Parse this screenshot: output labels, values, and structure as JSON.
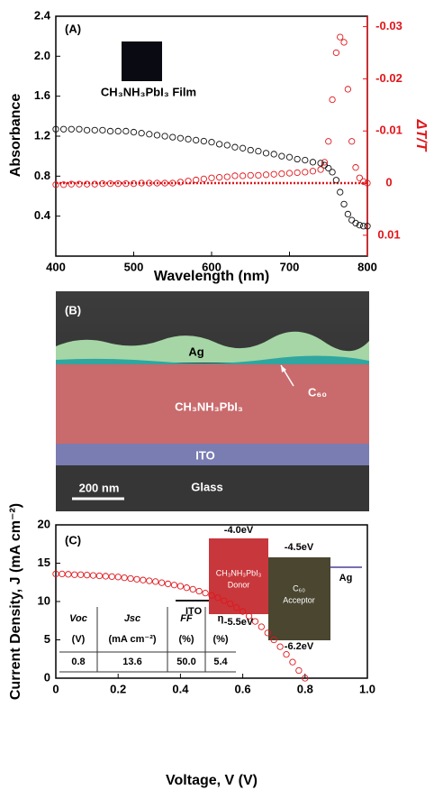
{
  "chart_data": [
    {
      "type": "scatter",
      "panel_label": "(A)",
      "y_label": "Absorbance",
      "x_label": "Wavelength (nm)",
      "y2_label": "ΔT/T",
      "inset_label": "CH₃NH₃PbI₃ Film",
      "xlim": [
        400,
        800
      ],
      "xticks": [
        400,
        500,
        600,
        700,
        800
      ],
      "ylim": [
        0,
        2.4
      ],
      "yticks": [
        0.4,
        0.8,
        1.2,
        1.6,
        {
          "value": 2,
          "label": "2.0"
        },
        2.4
      ],
      "y2lim": [
        0.014,
        -0.032
      ],
      "y2ticks": [
        -0.03,
        -0.02,
        -0.01,
        0,
        0.01
      ],
      "x": [
        400,
        410,
        420,
        430,
        440,
        450,
        460,
        470,
        480,
        490,
        500,
        510,
        520,
        530,
        540,
        550,
        560,
        570,
        580,
        590,
        600,
        610,
        620,
        630,
        640,
        650,
        660,
        670,
        680,
        690,
        700,
        710,
        720,
        730,
        740,
        745,
        750,
        755,
        760,
        765,
        770,
        775,
        780,
        785,
        790,
        795,
        800
      ],
      "series": [
        {
          "color": "#111111",
          "axis": "y",
          "values": [
            1.27,
            1.27,
            1.27,
            1.27,
            1.26,
            1.26,
            1.26,
            1.25,
            1.25,
            1.25,
            1.24,
            1.23,
            1.22,
            1.21,
            1.2,
            1.19,
            1.18,
            1.17,
            1.16,
            1.15,
            1.14,
            1.12,
            1.11,
            1.09,
            1.08,
            1.06,
            1.05,
            1.03,
            1.02,
            1.0,
            0.99,
            0.97,
            0.96,
            0.94,
            0.93,
            0.91,
            0.88,
            0.84,
            0.76,
            0.64,
            0.52,
            0.42,
            0.36,
            0.33,
            0.31,
            0.3,
            0.3
          ]
        },
        {
          "color": "#e0161b",
          "axis": "y2",
          "values": [
            0.0003,
            0.0003,
            0.0002,
            0.0002,
            0.0002,
            0.0002,
            0.0001,
            0.0001,
            0.0001,
            0.0001,
            0.0001,
            0.0,
            0.0,
            0.0,
            0.0,
            0.0,
            -0.0002,
            -0.0004,
            -0.0006,
            -0.0008,
            -0.001,
            -0.0011,
            -0.0012,
            -0.0014,
            -0.0014,
            -0.0015,
            -0.0015,
            -0.0016,
            -0.0017,
            -0.0018,
            -0.0019,
            -0.002,
            -0.0021,
            -0.0023,
            -0.0026,
            -0.004,
            -0.008,
            -0.016,
            -0.025,
            -0.028,
            -0.027,
            -0.018,
            -0.008,
            -0.003,
            -0.001,
            -0.0003,
            0.0
          ]
        }
      ]
    },
    {
      "type": "scatter",
      "panel_label": "(C)",
      "y_label": "Current Density, J (mA cm⁻²)",
      "x_label": "Voltage, V (V)",
      "xlim": [
        0,
        1
      ],
      "xticks": [
        0,
        0.2,
        0.4,
        0.6,
        0.8,
        {
          "value": 1,
          "label": "1.0"
        }
      ],
      "ylim": [
        0,
        20
      ],
      "yticks": [
        0,
        5,
        10,
        15,
        20
      ],
      "x": [
        0,
        0.02,
        0.04,
        0.06,
        0.08,
        0.1,
        0.12,
        0.14,
        0.16,
        0.18,
        0.2,
        0.22,
        0.24,
        0.26,
        0.28,
        0.3,
        0.32,
        0.34,
        0.36,
        0.38,
        0.4,
        0.42,
        0.44,
        0.46,
        0.48,
        0.5,
        0.52,
        0.54,
        0.56,
        0.58,
        0.6,
        0.62,
        0.64,
        0.66,
        0.68,
        0.7,
        0.72,
        0.74,
        0.76,
        0.78,
        0.8
      ],
      "series": [
        {
          "color": "#e0161b",
          "axis": "y",
          "values": [
            13.6,
            13.6,
            13.55,
            13.5,
            13.5,
            13.45,
            13.4,
            13.35,
            13.3,
            13.25,
            13.2,
            13.1,
            13.0,
            12.9,
            12.8,
            12.7,
            12.6,
            12.45,
            12.3,
            12.15,
            12.0,
            11.8,
            11.6,
            11.35,
            11.1,
            10.8,
            10.5,
            10.1,
            9.7,
            9.2,
            8.7,
            8.1,
            7.4,
            6.7,
            5.9,
            5.0,
            4.1,
            3.1,
            2.1,
            1.0,
            0
          ]
        }
      ],
      "energy_diagram": {
        "ito": "ITO",
        "donor_lumo": "-4.0eV",
        "donor_homo": "-5.5eV",
        "donor_name": "CH₃NH₃PbI₃",
        "donor_role": "Donor",
        "acceptor_lumo": "-4.5eV",
        "acceptor_homo": "-6.2eV",
        "acceptor_name": "C₆₀",
        "acceptor_role": "Acceptor",
        "ag": "Ag"
      },
      "table": {
        "rows": [
          [
            "Voc",
            "Jsc",
            "FF",
            "η"
          ],
          [
            "(V)",
            "(mA cm⁻²)",
            "(%)",
            "(%)"
          ],
          [
            "0.8",
            "13.6",
            "50.0",
            "5.4"
          ]
        ]
      }
    }
  ],
  "sem_image": {
    "panel_label": "(B)",
    "ag": "Ag",
    "c60": "C₆₀",
    "perovskite": "CH₃NH₃PbI₃",
    "ito": "ITO",
    "glass": "Glass",
    "scale_bar": "200 nm"
  }
}
